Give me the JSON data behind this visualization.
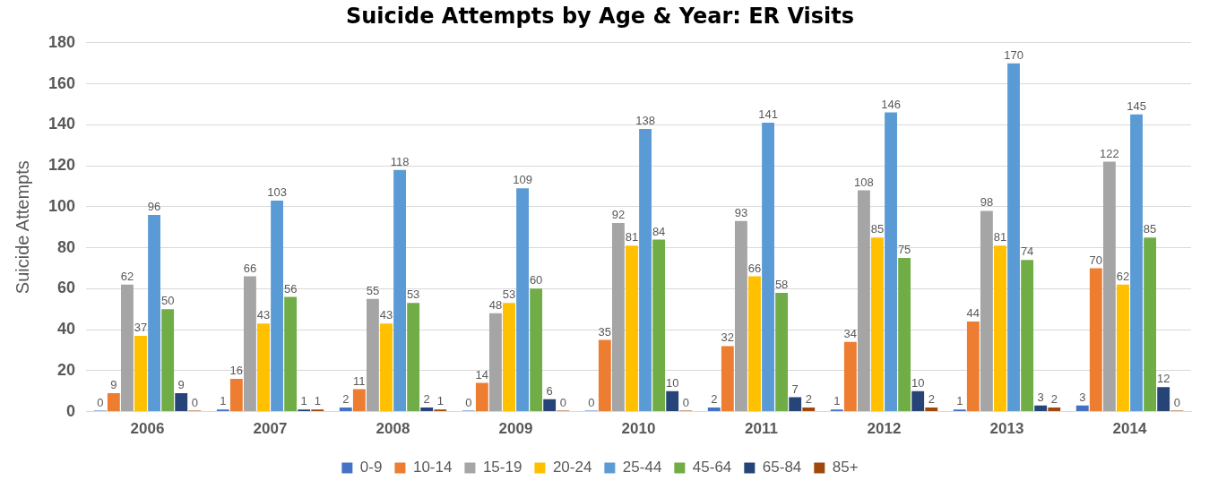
{
  "chart_data": {
    "type": "bar",
    "title": "Suicide Attempts by Age & Year: ER Visits",
    "ylabel": "Suicide Attempts",
    "categories": [
      "2006",
      "2007",
      "2008",
      "2009",
      "2010",
      "2011",
      "2012",
      "2013",
      "2014"
    ],
    "series": [
      {
        "name": "0-9",
        "color": "#4472c4",
        "values": [
          0,
          1,
          2,
          0,
          0,
          2,
          1,
          1,
          3
        ]
      },
      {
        "name": "10-14",
        "color": "#ed7d31",
        "values": [
          9,
          16,
          11,
          14,
          35,
          32,
          34,
          44,
          70
        ]
      },
      {
        "name": "15-19",
        "color": "#a5a5a5",
        "values": [
          62,
          66,
          55,
          48,
          92,
          93,
          108,
          98,
          122
        ]
      },
      {
        "name": "20-24",
        "color": "#ffc000",
        "values": [
          37,
          43,
          43,
          53,
          81,
          66,
          85,
          81,
          62
        ]
      },
      {
        "name": "25-44",
        "color": "#5b9bd5",
        "values": [
          96,
          103,
          118,
          109,
          138,
          141,
          146,
          170,
          145
        ]
      },
      {
        "name": "45-64",
        "color": "#70ad47",
        "values": [
          50,
          56,
          53,
          60,
          84,
          58,
          75,
          74,
          85
        ]
      },
      {
        "name": "65-84",
        "color": "#264478",
        "values": [
          9,
          1,
          2,
          6,
          10,
          7,
          10,
          3,
          12
        ]
      },
      {
        "name": "85+",
        "color": "#9e480e",
        "values": [
          0,
          1,
          1,
          0,
          0,
          2,
          2,
          2,
          0
        ]
      }
    ],
    "ylim": [
      0,
      180
    ],
    "yticks": [
      0,
      20,
      40,
      60,
      80,
      100,
      120,
      140,
      160,
      180
    ],
    "grid": "y",
    "legend": "bottom",
    "data_labels": true
  }
}
